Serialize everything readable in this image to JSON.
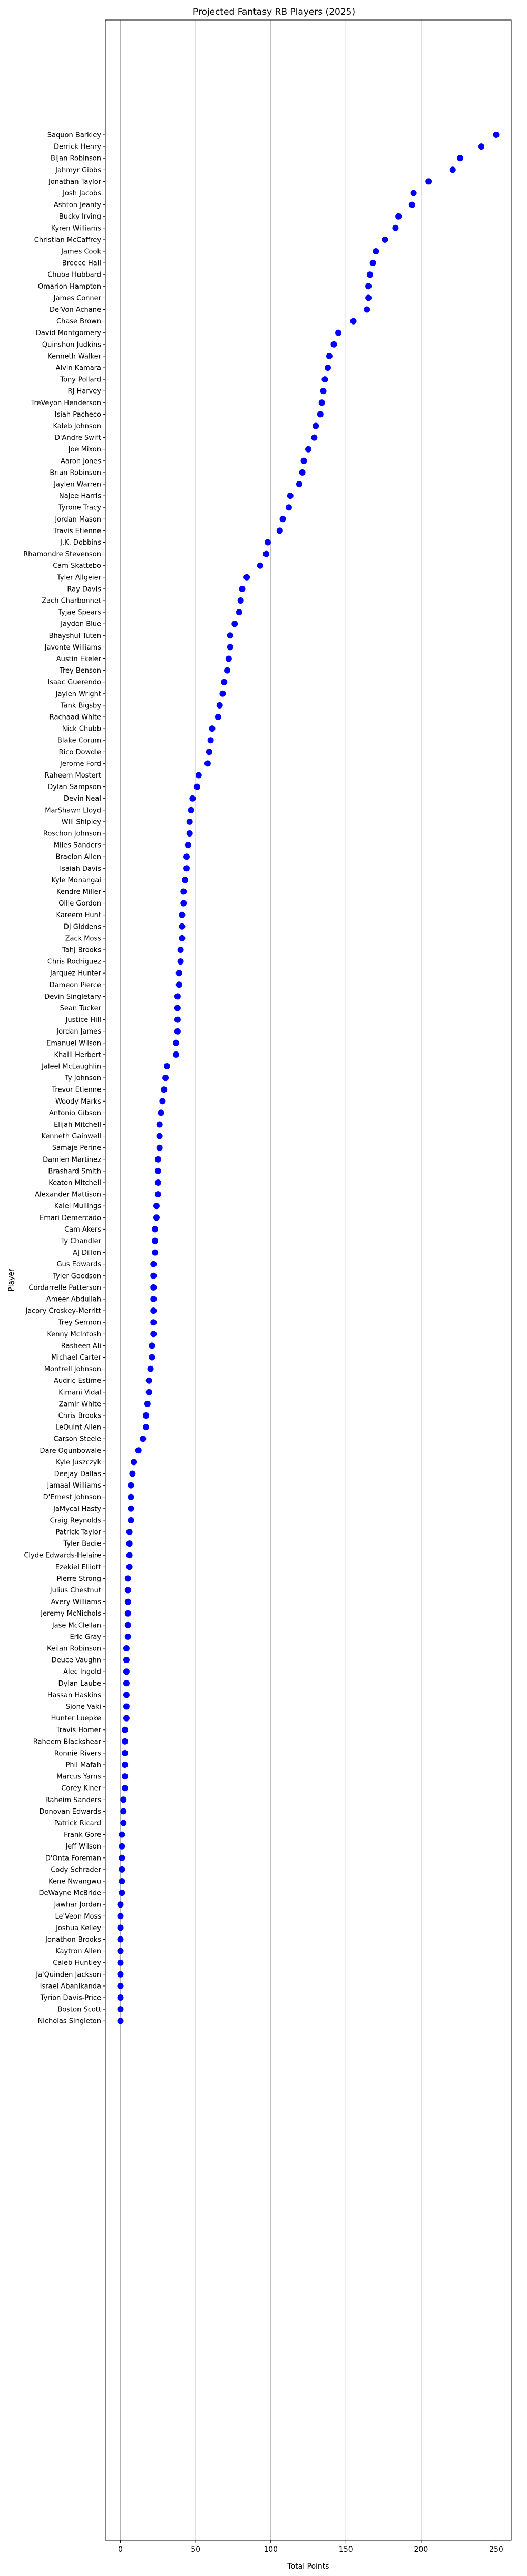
{
  "chart_data": {
    "type": "scatter",
    "title": "Projected Fantasy RB Players (2025)",
    "xlabel": "Total Points",
    "ylabel": "Player",
    "xlim": [
      -10,
      260
    ],
    "xticks": [
      0,
      50,
      100,
      150,
      200,
      250
    ],
    "grid": "x",
    "marker_color": "#0000ff",
    "points": [
      {
        "player": "Saquon Barkley",
        "points": 250
      },
      {
        "player": "Derrick Henry",
        "points": 240
      },
      {
        "player": "Bijan Robinson",
        "points": 226
      },
      {
        "player": "Jahmyr Gibbs",
        "points": 221
      },
      {
        "player": "Jonathan Taylor",
        "points": 205
      },
      {
        "player": "Josh Jacobs",
        "points": 195
      },
      {
        "player": "Ashton Jeanty",
        "points": 194
      },
      {
        "player": "Bucky Irving",
        "points": 185
      },
      {
        "player": "Kyren Williams",
        "points": 183
      },
      {
        "player": "Christian McCaffrey",
        "points": 176
      },
      {
        "player": "James Cook",
        "points": 170
      },
      {
        "player": "Breece Hall",
        "points": 168
      },
      {
        "player": "Chuba Hubbard",
        "points": 166
      },
      {
        "player": "Omarion Hampton",
        "points": 165
      },
      {
        "player": "James Conner",
        "points": 165
      },
      {
        "player": "De'Von Achane",
        "points": 164
      },
      {
        "player": "Chase Brown",
        "points": 155
      },
      {
        "player": "David Montgomery",
        "points": 145
      },
      {
        "player": "Quinshon Judkins",
        "points": 142
      },
      {
        "player": "Kenneth Walker",
        "points": 139
      },
      {
        "player": "Alvin Kamara",
        "points": 138
      },
      {
        "player": "Tony Pollard",
        "points": 136
      },
      {
        "player": "RJ Harvey",
        "points": 135
      },
      {
        "player": "TreVeyon Henderson",
        "points": 134
      },
      {
        "player": "Isiah Pacheco",
        "points": 133
      },
      {
        "player": "Kaleb Johnson",
        "points": 130
      },
      {
        "player": "D'Andre Swift",
        "points": 129
      },
      {
        "player": "Joe Mixon",
        "points": 125
      },
      {
        "player": "Aaron Jones",
        "points": 122
      },
      {
        "player": "Brian Robinson",
        "points": 121
      },
      {
        "player": "Jaylen Warren",
        "points": 119
      },
      {
        "player": "Najee Harris",
        "points": 113
      },
      {
        "player": "Tyrone Tracy",
        "points": 112
      },
      {
        "player": "Jordan Mason",
        "points": 108
      },
      {
        "player": "Travis Etienne",
        "points": 106
      },
      {
        "player": "J.K. Dobbins",
        "points": 98
      },
      {
        "player": "Rhamondre Stevenson",
        "points": 97
      },
      {
        "player": "Cam Skattebo",
        "points": 93
      },
      {
        "player": "Tyler Allgeier",
        "points": 84
      },
      {
        "player": "Ray Davis",
        "points": 81
      },
      {
        "player": "Zach Charbonnet",
        "points": 80
      },
      {
        "player": "Tyjae Spears",
        "points": 79
      },
      {
        "player": "Jaydon Blue",
        "points": 76
      },
      {
        "player": "Bhayshul Tuten",
        "points": 73
      },
      {
        "player": "Javonte Williams",
        "points": 73
      },
      {
        "player": "Austin Ekeler",
        "points": 72
      },
      {
        "player": "Trey Benson",
        "points": 71
      },
      {
        "player": "Isaac Guerendo",
        "points": 69
      },
      {
        "player": "Jaylen Wright",
        "points": 68
      },
      {
        "player": "Tank Bigsby",
        "points": 66
      },
      {
        "player": "Rachaad White",
        "points": 65
      },
      {
        "player": "Nick Chubb",
        "points": 61
      },
      {
        "player": "Blake Corum",
        "points": 60
      },
      {
        "player": "Rico Dowdle",
        "points": 59
      },
      {
        "player": "Jerome Ford",
        "points": 58
      },
      {
        "player": "Raheem Mostert",
        "points": 52
      },
      {
        "player": "Dylan Sampson",
        "points": 51
      },
      {
        "player": "Devin Neal",
        "points": 48
      },
      {
        "player": "MarShawn Lloyd",
        "points": 47
      },
      {
        "player": "Will Shipley",
        "points": 46
      },
      {
        "player": "Roschon Johnson",
        "points": 46
      },
      {
        "player": "Miles Sanders",
        "points": 45
      },
      {
        "player": "Braelon Allen",
        "points": 44
      },
      {
        "player": "Isaiah Davis",
        "points": 44
      },
      {
        "player": "Kyle Monangai",
        "points": 43
      },
      {
        "player": "Kendre Miller",
        "points": 42
      },
      {
        "player": "Ollie Gordon",
        "points": 42
      },
      {
        "player": "Kareem Hunt",
        "points": 41
      },
      {
        "player": "DJ Giddens",
        "points": 41
      },
      {
        "player": "Zack Moss",
        "points": 41
      },
      {
        "player": "Tahj Brooks",
        "points": 40
      },
      {
        "player": "Chris Rodriguez",
        "points": 40
      },
      {
        "player": "Jarquez Hunter",
        "points": 39
      },
      {
        "player": "Dameon Pierce",
        "points": 39
      },
      {
        "player": "Devin Singletary",
        "points": 38
      },
      {
        "player": "Sean Tucker",
        "points": 38
      },
      {
        "player": "Justice Hill",
        "points": 38
      },
      {
        "player": "Jordan James",
        "points": 38
      },
      {
        "player": "Emanuel Wilson",
        "points": 37
      },
      {
        "player": "Khalil Herbert",
        "points": 37
      },
      {
        "player": "Jaleel McLaughlin",
        "points": 31
      },
      {
        "player": "Ty Johnson",
        "points": 30
      },
      {
        "player": "Trevor Etienne",
        "points": 29
      },
      {
        "player": "Woody Marks",
        "points": 28
      },
      {
        "player": "Antonio Gibson",
        "points": 27
      },
      {
        "player": "Elijah Mitchell",
        "points": 26
      },
      {
        "player": "Kenneth Gainwell",
        "points": 26
      },
      {
        "player": "Samaje Perine",
        "points": 26
      },
      {
        "player": "Damien Martinez",
        "points": 25
      },
      {
        "player": "Brashard Smith",
        "points": 25
      },
      {
        "player": "Keaton Mitchell",
        "points": 25
      },
      {
        "player": "Alexander Mattison",
        "points": 25
      },
      {
        "player": "Kalel Mullings",
        "points": 24
      },
      {
        "player": "Emari Demercado",
        "points": 24
      },
      {
        "player": "Cam Akers",
        "points": 23
      },
      {
        "player": "Ty Chandler",
        "points": 23
      },
      {
        "player": "AJ Dillon",
        "points": 23
      },
      {
        "player": "Gus Edwards",
        "points": 22
      },
      {
        "player": "Tyler Goodson",
        "points": 22
      },
      {
        "player": "Cordarrelle Patterson",
        "points": 22
      },
      {
        "player": "Ameer Abdullah",
        "points": 22
      },
      {
        "player": "Jacory Croskey-Merritt",
        "points": 22
      },
      {
        "player": "Trey Sermon",
        "points": 22
      },
      {
        "player": "Kenny McIntosh",
        "points": 22
      },
      {
        "player": "Rasheen Ali",
        "points": 21
      },
      {
        "player": "Michael Carter",
        "points": 21
      },
      {
        "player": "Montrell Johnson",
        "points": 20
      },
      {
        "player": "Audric Estime",
        "points": 19
      },
      {
        "player": "Kimani Vidal",
        "points": 19
      },
      {
        "player": "Zamir White",
        "points": 18
      },
      {
        "player": "Chris Brooks",
        "points": 17
      },
      {
        "player": "LeQuint Allen",
        "points": 17
      },
      {
        "player": "Carson Steele",
        "points": 15
      },
      {
        "player": "Dare Ogunbowale",
        "points": 12
      },
      {
        "player": "Kyle Juszczyk",
        "points": 9
      },
      {
        "player": "Deejay Dallas",
        "points": 8
      },
      {
        "player": "Jamaal Williams",
        "points": 7
      },
      {
        "player": "D'Ernest Johnson",
        "points": 7
      },
      {
        "player": "JaMycal Hasty",
        "points": 7
      },
      {
        "player": "Craig Reynolds",
        "points": 7
      },
      {
        "player": "Patrick Taylor",
        "points": 6
      },
      {
        "player": "Tyler Badie",
        "points": 6
      },
      {
        "player": "Clyde Edwards-Helaire",
        "points": 6
      },
      {
        "player": "Ezekiel Elliott",
        "points": 6
      },
      {
        "player": "Pierre Strong",
        "points": 5
      },
      {
        "player": "Julius Chestnut",
        "points": 5
      },
      {
        "player": "Avery Williams",
        "points": 5
      },
      {
        "player": "Jeremy McNichols",
        "points": 5
      },
      {
        "player": "Jase McClellan",
        "points": 5
      },
      {
        "player": "Eric Gray",
        "points": 5
      },
      {
        "player": "Keilan Robinson",
        "points": 4
      },
      {
        "player": "Deuce Vaughn",
        "points": 4
      },
      {
        "player": "Alec Ingold",
        "points": 4
      },
      {
        "player": "Dylan Laube",
        "points": 4
      },
      {
        "player": "Hassan Haskins",
        "points": 4
      },
      {
        "player": "Sione Vaki",
        "points": 4
      },
      {
        "player": "Hunter Luepke",
        "points": 4
      },
      {
        "player": "Travis Homer",
        "points": 3
      },
      {
        "player": "Raheem Blackshear",
        "points": 3
      },
      {
        "player": "Ronnie Rivers",
        "points": 3
      },
      {
        "player": "Phil Mafah",
        "points": 3
      },
      {
        "player": "Marcus Yarns",
        "points": 3
      },
      {
        "player": "Corey Kiner",
        "points": 3
      },
      {
        "player": "Raheim Sanders",
        "points": 2
      },
      {
        "player": "Donovan Edwards",
        "points": 2
      },
      {
        "player": "Patrick Ricard",
        "points": 2
      },
      {
        "player": "Frank Gore",
        "points": 1
      },
      {
        "player": "Jeff Wilson",
        "points": 1
      },
      {
        "player": "D'Onta Foreman",
        "points": 1
      },
      {
        "player": "Cody Schrader",
        "points": 1
      },
      {
        "player": "Kene Nwangwu",
        "points": 1
      },
      {
        "player": "DeWayne McBride",
        "points": 1
      },
      {
        "player": "Jawhar Jordan",
        "points": 0
      },
      {
        "player": "Le'Veon Moss",
        "points": 0
      },
      {
        "player": "Joshua Kelley",
        "points": 0
      },
      {
        "player": "Jonathon Brooks",
        "points": 0
      },
      {
        "player": "Kaytron Allen",
        "points": 0
      },
      {
        "player": "Caleb Huntley",
        "points": 0
      },
      {
        "player": "Ja'Quinden Jackson",
        "points": 0
      },
      {
        "player": "Israel Abanikanda",
        "points": 0
      },
      {
        "player": "Tyrion Davis-Price",
        "points": 0
      },
      {
        "player": "Boston Scott",
        "points": 0
      },
      {
        "player": "Nicholas Singleton",
        "points": 0
      }
    ]
  }
}
